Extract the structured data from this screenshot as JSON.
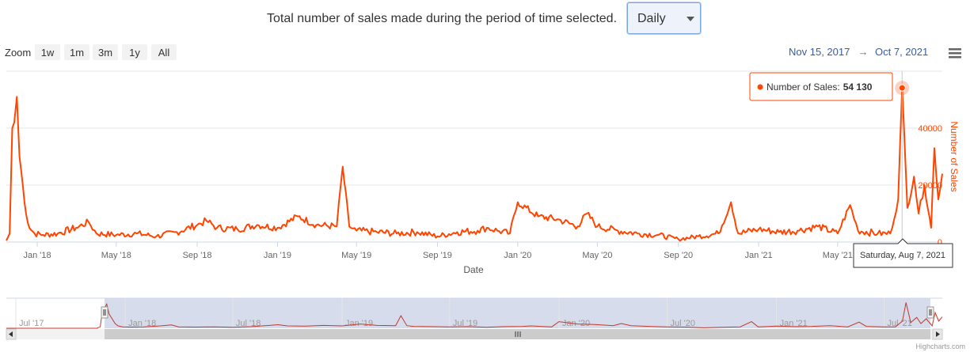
{
  "header": {
    "text": "Total number of sales made during the period of time selected.",
    "period": "Daily"
  },
  "range_selector": {
    "zoom_label": "Zoom",
    "buttons": [
      "1w",
      "1m",
      "3m",
      "1y",
      "All"
    ],
    "from": "Nov 15, 2017",
    "arrow": "→",
    "to": "Oct 7, 2021"
  },
  "tooltip": {
    "series": "Number of Sales",
    "sep": ":",
    "value": "54 130"
  },
  "crosshair_label": "Saturday, Aug 7, 2021",
  "credits": "Highcharts.com",
  "colors": {
    "series": "#ff4500",
    "navigator_line": "#c0392b",
    "navigator_mask": "#cfd6e8",
    "link": "#335cad"
  },
  "icons": {
    "menu": "hamburger-menu-icon"
  },
  "chart_data": {
    "type": "line",
    "xlabel": "Date",
    "ylabel": "Number of Sales",
    "x_ticks": [
      "Jan '18",
      "May '18",
      "Sep '18",
      "Jan '19",
      "May '19",
      "Sep '19",
      "Jan '20",
      "May '20",
      "Sep '20",
      "Jan '21",
      "May '21"
    ],
    "y_ticks": [
      "0",
      "20000",
      "40000"
    ],
    "ylim": [
      0,
      60000
    ],
    "xlim": [
      "2017-11-15",
      "2021-10-07"
    ],
    "grid": true,
    "navigator_ticks": [
      "Jul '17",
      "Jan '18",
      "Jul '18",
      "Jan '19",
      "Jul '19",
      "Jan '20",
      "Jul '20",
      "Jan '21",
      "Jul '21"
    ],
    "series": [
      {
        "name": "Number of Sales",
        "x": [
          "2017-11-15",
          "2017-11-20",
          "2017-11-24",
          "2017-11-27",
          "2017-12-01",
          "2017-12-05",
          "2017-12-10",
          "2017-12-15",
          "2017-12-20",
          "2017-12-28",
          "2018-01-10",
          "2018-02-01",
          "2018-03-01",
          "2018-03-20",
          "2018-04-01",
          "2018-05-01",
          "2018-06-01",
          "2018-07-01",
          "2018-08-01",
          "2018-09-01",
          "2018-09-15",
          "2018-10-01",
          "2018-11-01",
          "2018-12-01",
          "2019-01-01",
          "2019-02-01",
          "2019-03-01",
          "2019-04-01",
          "2019-04-10",
          "2019-04-20",
          "2019-05-01",
          "2019-06-01",
          "2019-07-01",
          "2019-08-01",
          "2019-09-01",
          "2019-10-01",
          "2019-11-01",
          "2019-11-15",
          "2019-12-01",
          "2019-12-20",
          "2020-01-01",
          "2020-02-01",
          "2020-03-01",
          "2020-04-01",
          "2020-04-15",
          "2020-05-01",
          "2020-06-01",
          "2020-07-01",
          "2020-08-01",
          "2020-09-01",
          "2020-10-01",
          "2020-11-01",
          "2020-11-20",
          "2020-12-01",
          "2021-01-01",
          "2021-02-01",
          "2021-03-01",
          "2021-04-01",
          "2021-05-01",
          "2021-05-20",
          "2021-06-01",
          "2021-07-01",
          "2021-07-20",
          "2021-08-01",
          "2021-08-07",
          "2021-08-15",
          "2021-08-25",
          "2021-09-01",
          "2021-09-10",
          "2021-09-20",
          "2021-09-25",
          "2021-10-01",
          "2021-10-07"
        ],
        "values": [
          500,
          3000,
          40000,
          42000,
          51000,
          30000,
          20000,
          10000,
          5000,
          3000,
          2500,
          3000,
          5000,
          7000,
          3000,
          2500,
          3000,
          2000,
          3500,
          6000,
          7500,
          5000,
          4500,
          6000,
          5000,
          9000,
          6000,
          5500,
          26500,
          5500,
          4000,
          3500,
          3000,
          3500,
          2000,
          3500,
          4000,
          5000,
          4000,
          3000,
          14000,
          9000,
          8000,
          5500,
          10000,
          5500,
          4000,
          3000,
          2500,
          1000,
          2000,
          3000,
          14000,
          3000,
          4500,
          3500,
          4000,
          5500,
          3000,
          13000,
          4000,
          3000,
          3000,
          15000,
          54130,
          12000,
          23000,
          10000,
          20000,
          5000,
          33000,
          15000,
          24000
        ]
      }
    ]
  }
}
